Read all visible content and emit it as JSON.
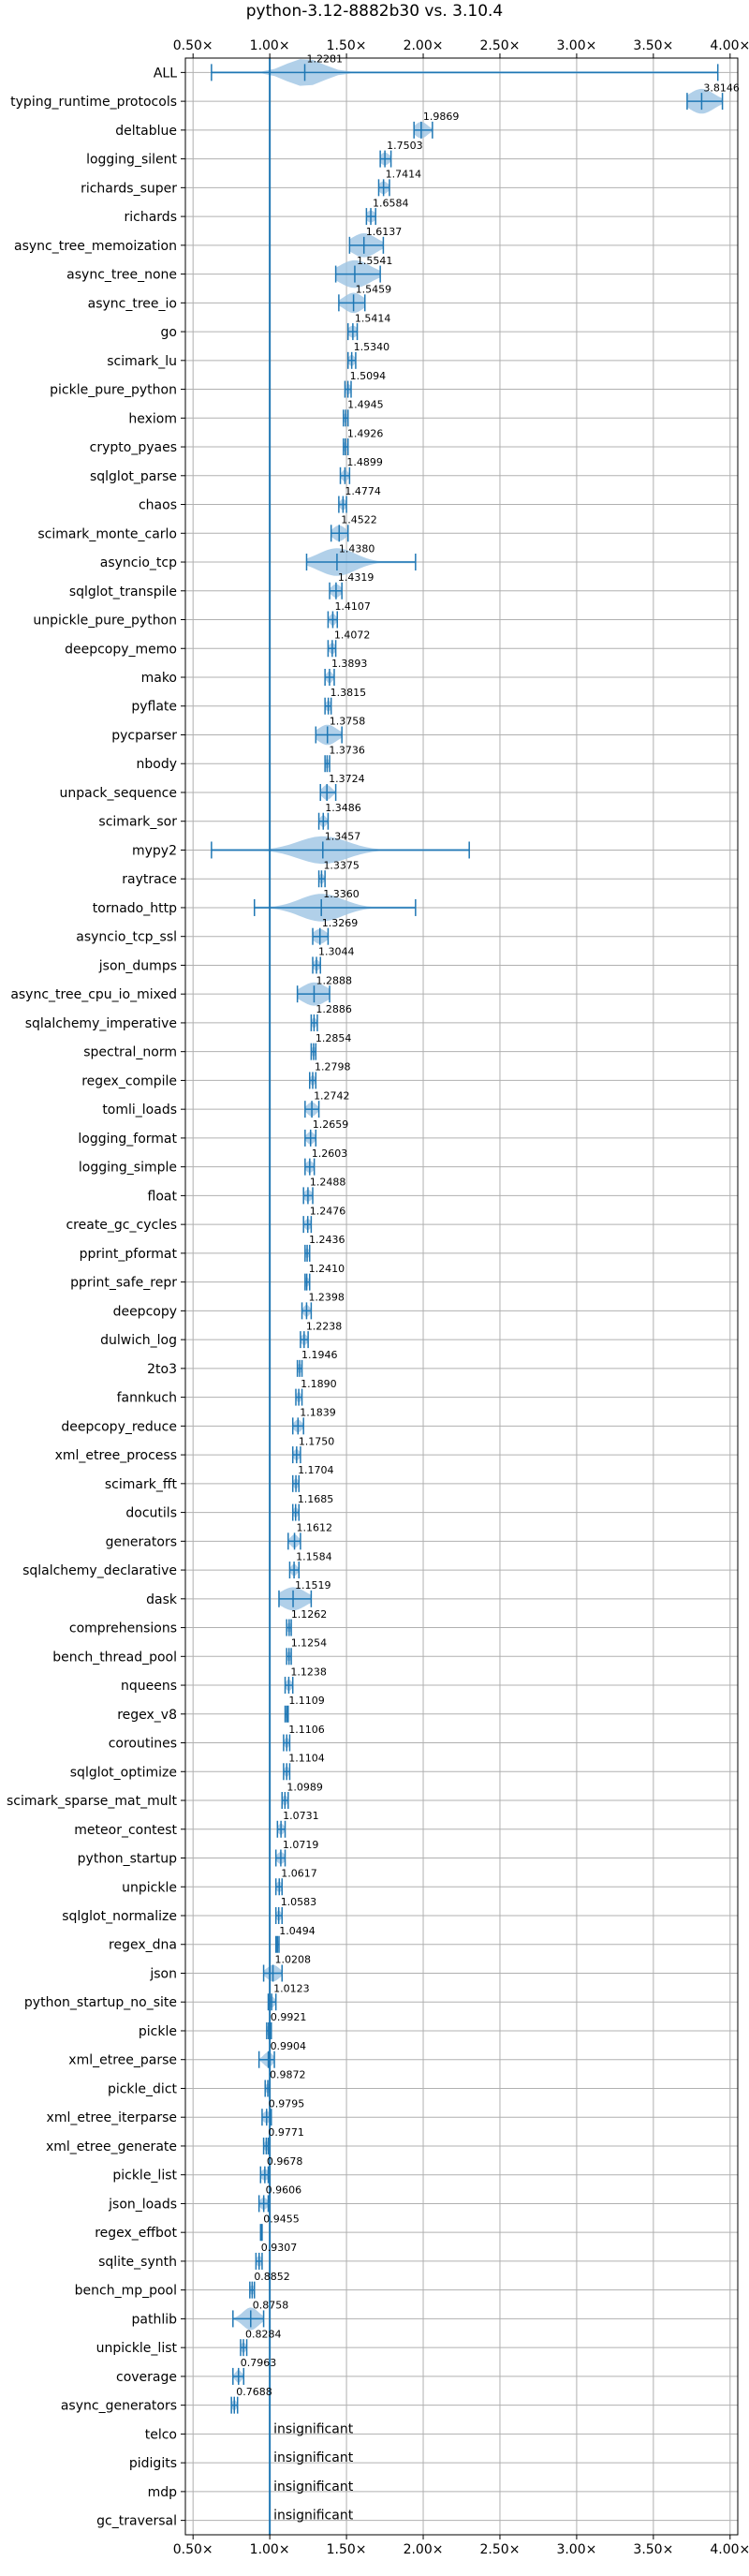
{
  "chart_data": {
    "type": "violin",
    "title": "python-3.12-8882b30 vs. 3.10.4",
    "xlim": [
      0.45,
      4.05
    ],
    "xticks": [
      0.5,
      1.0,
      1.5,
      2.0,
      2.5,
      3.0,
      3.5,
      4.0
    ],
    "xtick_labels": [
      "0.50×",
      "1.00×",
      "1.50×",
      "2.00×",
      "2.50×",
      "3.00×",
      "3.50×",
      "4.00×"
    ],
    "reference_line": 1.0,
    "grid": true,
    "insignificant_label": "insignificant",
    "benchmarks": [
      {
        "name": "ALL",
        "mean": 1.2281,
        "label": "1.2281",
        "min": 0.62,
        "max": 3.92,
        "spread": 0.12
      },
      {
        "name": "typing_runtime_protocols",
        "mean": 3.8146,
        "label": "3.8146",
        "min": 3.72,
        "max": 3.95,
        "spread": 0.08
      },
      {
        "name": "deltablue",
        "mean": 1.9869,
        "label": "1.9869",
        "min": 1.94,
        "max": 2.06,
        "spread": 0.04
      },
      {
        "name": "logging_silent",
        "mean": 1.7503,
        "label": "1.7503",
        "min": 1.72,
        "max": 1.79,
        "spread": 0.03
      },
      {
        "name": "richards_super",
        "mean": 1.7414,
        "label": "1.7414",
        "min": 1.71,
        "max": 1.78,
        "spread": 0.03
      },
      {
        "name": "richards",
        "mean": 1.6584,
        "label": "1.6584",
        "min": 1.63,
        "max": 1.69,
        "spread": 0.03
      },
      {
        "name": "async_tree_memoization",
        "mean": 1.6137,
        "label": "1.6137",
        "min": 1.52,
        "max": 1.74,
        "spread": 0.08
      },
      {
        "name": "async_tree_none",
        "mean": 1.5541,
        "label": "1.5541",
        "min": 1.43,
        "max": 1.72,
        "spread": 0.1
      },
      {
        "name": "async_tree_io",
        "mean": 1.5459,
        "label": "1.5459",
        "min": 1.45,
        "max": 1.62,
        "spread": 0.06
      },
      {
        "name": "go",
        "mean": 1.5414,
        "label": "1.5414",
        "min": 1.51,
        "max": 1.57,
        "spread": 0.03
      },
      {
        "name": "scimark_lu",
        "mean": 1.534,
        "label": "1.5340",
        "min": 1.51,
        "max": 1.56,
        "spread": 0.02
      },
      {
        "name": "pickle_pure_python",
        "mean": 1.5094,
        "label": "1.5094",
        "min": 1.49,
        "max": 1.53,
        "spread": 0.02
      },
      {
        "name": "hexiom",
        "mean": 1.4945,
        "label": "1.4945",
        "min": 1.48,
        "max": 1.51,
        "spread": 0.015
      },
      {
        "name": "crypto_pyaes",
        "mean": 1.4926,
        "label": "1.4926",
        "min": 1.48,
        "max": 1.51,
        "spread": 0.015
      },
      {
        "name": "sqlglot_parse",
        "mean": 1.4899,
        "label": "1.4899",
        "min": 1.46,
        "max": 1.52,
        "spread": 0.02
      },
      {
        "name": "chaos",
        "mean": 1.4774,
        "label": "1.4774",
        "min": 1.45,
        "max": 1.5,
        "spread": 0.02
      },
      {
        "name": "scimark_monte_carlo",
        "mean": 1.4522,
        "label": "1.4522",
        "min": 1.4,
        "max": 1.51,
        "spread": 0.04
      },
      {
        "name": "asyncio_tcp",
        "mean": 1.438,
        "label": "1.4380",
        "min": 1.24,
        "max": 1.95,
        "spread": 0.12
      },
      {
        "name": "sqlglot_transpile",
        "mean": 1.4319,
        "label": "1.4319",
        "min": 1.39,
        "max": 1.47,
        "spread": 0.03
      },
      {
        "name": "unpickle_pure_python",
        "mean": 1.4107,
        "label": "1.4107",
        "min": 1.38,
        "max": 1.44,
        "spread": 0.02
      },
      {
        "name": "deepcopy_memo",
        "mean": 1.4072,
        "label": "1.4072",
        "min": 1.38,
        "max": 1.43,
        "spread": 0.02
      },
      {
        "name": "mako",
        "mean": 1.3893,
        "label": "1.3893",
        "min": 1.36,
        "max": 1.42,
        "spread": 0.02
      },
      {
        "name": "pyflate",
        "mean": 1.3815,
        "label": "1.3815",
        "min": 1.36,
        "max": 1.4,
        "spread": 0.02
      },
      {
        "name": "pycparser",
        "mean": 1.3758,
        "label": "1.3758",
        "min": 1.3,
        "max": 1.47,
        "spread": 0.06
      },
      {
        "name": "nbody",
        "mean": 1.3736,
        "label": "1.3736",
        "min": 1.36,
        "max": 1.39,
        "spread": 0.015
      },
      {
        "name": "unpack_sequence",
        "mean": 1.3724,
        "label": "1.3724",
        "min": 1.33,
        "max": 1.43,
        "spread": 0.03
      },
      {
        "name": "scimark_sor",
        "mean": 1.3486,
        "label": "1.3486",
        "min": 1.32,
        "max": 1.38,
        "spread": 0.02
      },
      {
        "name": "mypy2",
        "mean": 1.3457,
        "label": "1.3457",
        "min": 0.62,
        "max": 2.3,
        "spread": 0.16
      },
      {
        "name": "raytrace",
        "mean": 1.3375,
        "label": "1.3375",
        "min": 1.32,
        "max": 1.36,
        "spread": 0.015
      },
      {
        "name": "tornado_http",
        "mean": 1.336,
        "label": "1.3360",
        "min": 0.9,
        "max": 1.95,
        "spread": 0.14
      },
      {
        "name": "asyncio_tcp_ssl",
        "mean": 1.3269,
        "label": "1.3269",
        "min": 1.28,
        "max": 1.38,
        "spread": 0.04
      },
      {
        "name": "json_dumps",
        "mean": 1.3044,
        "label": "1.3044",
        "min": 1.28,
        "max": 1.33,
        "spread": 0.02
      },
      {
        "name": "async_tree_cpu_io_mixed",
        "mean": 1.2888,
        "label": "1.2888",
        "min": 1.18,
        "max": 1.39,
        "spread": 0.08
      },
      {
        "name": "sqlalchemy_imperative",
        "mean": 1.2886,
        "label": "1.2886",
        "min": 1.27,
        "max": 1.31,
        "spread": 0.015
      },
      {
        "name": "spectral_norm",
        "mean": 1.2854,
        "label": "1.2854",
        "min": 1.27,
        "max": 1.3,
        "spread": 0.015
      },
      {
        "name": "regex_compile",
        "mean": 1.2798,
        "label": "1.2798",
        "min": 1.26,
        "max": 1.3,
        "spread": 0.015
      },
      {
        "name": "tomli_loads",
        "mean": 1.2742,
        "label": "1.2742",
        "min": 1.23,
        "max": 1.32,
        "spread": 0.03
      },
      {
        "name": "logging_format",
        "mean": 1.2659,
        "label": "1.2659",
        "min": 1.23,
        "max": 1.3,
        "spread": 0.025
      },
      {
        "name": "logging_simple",
        "mean": 1.2603,
        "label": "1.2603",
        "min": 1.23,
        "max": 1.29,
        "spread": 0.025
      },
      {
        "name": "float",
        "mean": 1.2488,
        "label": "1.2488",
        "min": 1.22,
        "max": 1.28,
        "spread": 0.025
      },
      {
        "name": "create_gc_cycles",
        "mean": 1.2476,
        "label": "1.2476",
        "min": 1.22,
        "max": 1.27,
        "spread": 0.02
      },
      {
        "name": "pprint_pformat",
        "mean": 1.2436,
        "label": "1.2436",
        "min": 1.23,
        "max": 1.26,
        "spread": 0.015
      },
      {
        "name": "pprint_safe_repr",
        "mean": 1.241,
        "label": "1.2410",
        "min": 1.23,
        "max": 1.26,
        "spread": 0.015
      },
      {
        "name": "deepcopy",
        "mean": 1.2398,
        "label": "1.2398",
        "min": 1.21,
        "max": 1.27,
        "spread": 0.02
      },
      {
        "name": "dulwich_log",
        "mean": 1.2238,
        "label": "1.2238",
        "min": 1.2,
        "max": 1.25,
        "spread": 0.02
      },
      {
        "name": "2to3",
        "mean": 1.1946,
        "label": "1.1946",
        "min": 1.18,
        "max": 1.21,
        "spread": 0.015
      },
      {
        "name": "fannkuch",
        "mean": 1.189,
        "label": "1.1890",
        "min": 1.17,
        "max": 1.21,
        "spread": 0.015
      },
      {
        "name": "deepcopy_reduce",
        "mean": 1.1839,
        "label": "1.1839",
        "min": 1.15,
        "max": 1.22,
        "spread": 0.025
      },
      {
        "name": "xml_etree_process",
        "mean": 1.175,
        "label": "1.1750",
        "min": 1.15,
        "max": 1.2,
        "spread": 0.02
      },
      {
        "name": "scimark_fft",
        "mean": 1.1704,
        "label": "1.1704",
        "min": 1.15,
        "max": 1.19,
        "spread": 0.015
      },
      {
        "name": "docutils",
        "mean": 1.1685,
        "label": "1.1685",
        "min": 1.15,
        "max": 1.19,
        "spread": 0.015
      },
      {
        "name": "generators",
        "mean": 1.1612,
        "label": "1.1612",
        "min": 1.12,
        "max": 1.2,
        "spread": 0.025
      },
      {
        "name": "sqlalchemy_declarative",
        "mean": 1.1584,
        "label": "1.1584",
        "min": 1.13,
        "max": 1.19,
        "spread": 0.02
      },
      {
        "name": "dask",
        "mean": 1.1519,
        "label": "1.1519",
        "min": 1.06,
        "max": 1.27,
        "spread": 0.08
      },
      {
        "name": "comprehensions",
        "mean": 1.1262,
        "label": "1.1262",
        "min": 1.11,
        "max": 1.14,
        "spread": 0.015
      },
      {
        "name": "bench_thread_pool",
        "mean": 1.1254,
        "label": "1.1254",
        "min": 1.11,
        "max": 1.14,
        "spread": 0.015
      },
      {
        "name": "nqueens",
        "mean": 1.1238,
        "label": "1.1238",
        "min": 1.1,
        "max": 1.15,
        "spread": 0.02
      },
      {
        "name": "regex_v8",
        "mean": 1.1109,
        "label": "1.1109",
        "min": 1.1,
        "max": 1.12,
        "spread": 0.01
      },
      {
        "name": "coroutines",
        "mean": 1.1106,
        "label": "1.1106",
        "min": 1.09,
        "max": 1.13,
        "spread": 0.015
      },
      {
        "name": "sqlglot_optimize",
        "mean": 1.1104,
        "label": "1.1104",
        "min": 1.09,
        "max": 1.13,
        "spread": 0.015
      },
      {
        "name": "scimark_sparse_mat_mult",
        "mean": 1.0989,
        "label": "1.0989",
        "min": 1.08,
        "max": 1.12,
        "spread": 0.015
      },
      {
        "name": "meteor_contest",
        "mean": 1.0731,
        "label": "1.0731",
        "min": 1.05,
        "max": 1.1,
        "spread": 0.02
      },
      {
        "name": "python_startup",
        "mean": 1.0719,
        "label": "1.0719",
        "min": 1.04,
        "max": 1.1,
        "spread": 0.025
      },
      {
        "name": "unpickle",
        "mean": 1.0617,
        "label": "1.0617",
        "min": 1.04,
        "max": 1.08,
        "spread": 0.02
      },
      {
        "name": "sqlglot_normalize",
        "mean": 1.0583,
        "label": "1.0583",
        "min": 1.04,
        "max": 1.08,
        "spread": 0.015
      },
      {
        "name": "regex_dna",
        "mean": 1.0494,
        "label": "1.0494",
        "min": 1.04,
        "max": 1.06,
        "spread": 0.01
      },
      {
        "name": "json",
        "mean": 1.0208,
        "label": "1.0208",
        "min": 0.96,
        "max": 1.08,
        "spread": 0.04
      },
      {
        "name": "python_startup_no_site",
        "mean": 1.0123,
        "label": "1.0123",
        "min": 0.99,
        "max": 1.04,
        "spread": 0.02
      },
      {
        "name": "pickle",
        "mean": 0.9921,
        "label": "0.9921",
        "min": 0.98,
        "max": 1.01,
        "spread": 0.015
      },
      {
        "name": "xml_etree_parse",
        "mean": 0.9904,
        "label": "0.9904",
        "min": 0.93,
        "max": 1.03,
        "spread": 0.03
      },
      {
        "name": "pickle_dict",
        "mean": 0.9872,
        "label": "0.9872",
        "min": 0.97,
        "max": 1.0,
        "spread": 0.015
      },
      {
        "name": "xml_etree_iterparse",
        "mean": 0.9795,
        "label": "0.9795",
        "min": 0.95,
        "max": 1.01,
        "spread": 0.025
      },
      {
        "name": "xml_etree_generate",
        "mean": 0.9771,
        "label": "0.9771",
        "min": 0.96,
        "max": 0.99,
        "spread": 0.015
      },
      {
        "name": "pickle_list",
        "mean": 0.9678,
        "label": "0.9678",
        "min": 0.94,
        "max": 0.99,
        "spread": 0.025
      },
      {
        "name": "json_loads",
        "mean": 0.9606,
        "label": "0.9606",
        "min": 0.93,
        "max": 0.99,
        "spread": 0.025
      },
      {
        "name": "regex_effbot",
        "mean": 0.9455,
        "label": "0.9455",
        "min": 0.94,
        "max": 0.95,
        "spread": 0.01
      },
      {
        "name": "sqlite_synth",
        "mean": 0.9307,
        "label": "0.9307",
        "min": 0.91,
        "max": 0.95,
        "spread": 0.02
      },
      {
        "name": "bench_mp_pool",
        "mean": 0.8852,
        "label": "0.8852",
        "min": 0.87,
        "max": 0.9,
        "spread": 0.015
      },
      {
        "name": "pathlib",
        "mean": 0.8758,
        "label": "0.8758",
        "min": 0.76,
        "max": 0.96,
        "spread": 0.05
      },
      {
        "name": "unpickle_list",
        "mean": 0.8284,
        "label": "0.8284",
        "min": 0.81,
        "max": 0.85,
        "spread": 0.015
      },
      {
        "name": "coverage",
        "mean": 0.7963,
        "label": "0.7963",
        "min": 0.76,
        "max": 0.83,
        "spread": 0.02
      },
      {
        "name": "async_generators",
        "mean": 0.7688,
        "label": "0.7688",
        "min": 0.75,
        "max": 0.79,
        "spread": 0.015
      },
      {
        "name": "telco",
        "insignificant": true
      },
      {
        "name": "pidigits",
        "insignificant": true
      },
      {
        "name": "mdp",
        "insignificant": true
      },
      {
        "name": "gc_traversal",
        "insignificant": true
      }
    ],
    "colors": {
      "body": "#9ec4e4",
      "line": "#1f77b4",
      "grid": "#b0b0b0",
      "axis": "#000000"
    }
  }
}
